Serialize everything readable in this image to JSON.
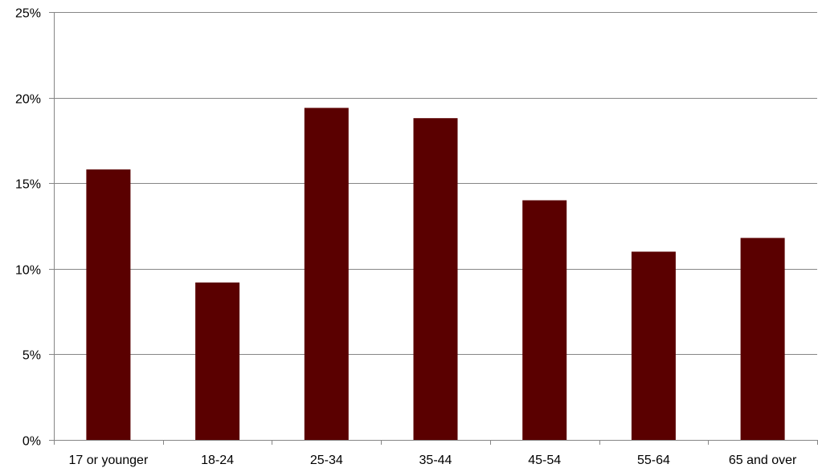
{
  "chart_data": {
    "type": "bar",
    "title": "",
    "xlabel": "",
    "ylabel": "",
    "categories": [
      "17 or younger",
      "18-24",
      "25-34",
      "35-44",
      "45-54",
      "55-64",
      "65 and over"
    ],
    "values": [
      15.8,
      9.2,
      19.4,
      18.8,
      14.0,
      11.0,
      11.8
    ],
    "ylim": [
      0,
      25
    ],
    "yticks": [
      0,
      5,
      10,
      15,
      20,
      25
    ],
    "ytick_labels": [
      "0%",
      "5%",
      "10%",
      "15%",
      "20%",
      "25%"
    ],
    "value_unit": "%",
    "grid": true,
    "legend": "none",
    "bar_color": "#5a0000",
    "grid_color": "#868686",
    "axis_color": "#868686"
  }
}
